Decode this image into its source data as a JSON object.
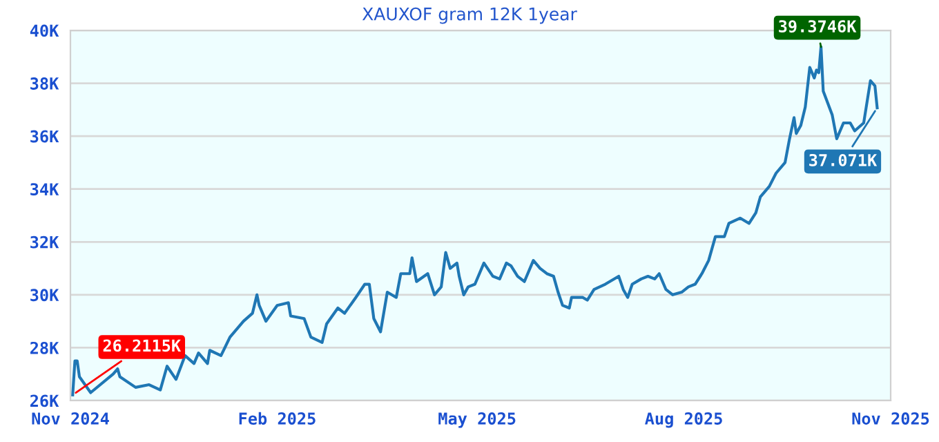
{
  "chart_data": {
    "type": "line",
    "title": "XAUXOF gram 12K 1year",
    "xlim": [
      "2024-11-01",
      "2025-11-01"
    ],
    "xticks": [
      {
        "value": "2024-11-01",
        "label": "Nov 2024"
      },
      {
        "value": "2025-02-01",
        "label": "Feb 2025"
      },
      {
        "value": "2025-05-01",
        "label": "May 2025"
      },
      {
        "value": "2025-08-01",
        "label": "Aug 2025"
      },
      {
        "value": "2025-11-01",
        "label": "Nov 2025"
      }
    ],
    "ylim": [
      26,
      40
    ],
    "yticks": [
      {
        "value": 26,
        "label": "26K"
      },
      {
        "value": 28,
        "label": "28K"
      },
      {
        "value": 30,
        "label": "30K"
      },
      {
        "value": 32,
        "label": "32K"
      },
      {
        "value": 34,
        "label": "34K"
      },
      {
        "value": 36,
        "label": "36K"
      },
      {
        "value": 38,
        "label": "38K"
      },
      {
        "value": 40,
        "label": "40K"
      }
    ],
    "grid": "y",
    "legend": false,
    "marker": "none",
    "line_style": "solid",
    "series": [
      {
        "color": "#1f77b4",
        "x": [
          "2024-11-02",
          "2024-11-03",
          "2024-11-04",
          "2024-11-05",
          "2024-11-10",
          "2024-11-20",
          "2024-11-22",
          "2024-11-23",
          "2024-11-30",
          "2024-12-06",
          "2024-12-11",
          "2024-12-14",
          "2024-12-18",
          "2024-12-22",
          "2024-12-26",
          "2024-12-28",
          "2025-01-01",
          "2025-01-02",
          "2025-01-07",
          "2025-01-11",
          "2025-01-17",
          "2025-01-21",
          "2025-01-23",
          "2025-01-24",
          "2025-01-27",
          "2025-02-01",
          "2025-02-06",
          "2025-02-07",
          "2025-02-13",
          "2025-02-16",
          "2025-02-21",
          "2025-02-23",
          "2025-02-28",
          "2025-03-03",
          "2025-03-08",
          "2025-03-12",
          "2025-03-14",
          "2025-03-16",
          "2025-03-19",
          "2025-03-22",
          "2025-03-26",
          "2025-03-28",
          "2025-04-01",
          "2025-04-02",
          "2025-04-04",
          "2025-04-09",
          "2025-04-12",
          "2025-04-15",
          "2025-04-17",
          "2025-04-19",
          "2025-04-22",
          "2025-04-23",
          "2025-04-25",
          "2025-04-27",
          "2025-04-30",
          "2025-05-04",
          "2025-05-08",
          "2025-05-11",
          "2025-05-14",
          "2025-05-16",
          "2025-05-19",
          "2025-05-22",
          "2025-05-26",
          "2025-05-29",
          "2025-06-01",
          "2025-06-04",
          "2025-06-06",
          "2025-06-08",
          "2025-06-11",
          "2025-06-12",
          "2025-06-17",
          "2025-06-19",
          "2025-06-22",
          "2025-06-27",
          "2025-07-03",
          "2025-07-05",
          "2025-07-07",
          "2025-07-09",
          "2025-07-13",
          "2025-07-16",
          "2025-07-19",
          "2025-07-21",
          "2025-07-24",
          "2025-07-27",
          "2025-07-31",
          "2025-08-03",
          "2025-08-06",
          "2025-08-09",
          "2025-08-12",
          "2025-08-15",
          "2025-08-19",
          "2025-08-21",
          "2025-08-26",
          "2025-08-30",
          "2025-09-02",
          "2025-09-04",
          "2025-09-08",
          "2025-09-11",
          "2025-09-15",
          "2025-09-17",
          "2025-09-19",
          "2025-09-20",
          "2025-09-22",
          "2025-09-24",
          "2025-09-26",
          "2025-09-28",
          "2025-09-29",
          "2025-09-30",
          "2025-10-01",
          "2025-10-02",
          "2025-10-06",
          "2025-10-08",
          "2025-10-11",
          "2025-10-14",
          "2025-10-16",
          "2025-10-20",
          "2025-10-23",
          "2025-10-25",
          "2025-10-26"
        ],
        "values": [
          26.2115,
          27.5,
          27.5,
          26.9,
          26.3,
          27.0,
          27.2,
          26.9,
          26.5,
          26.6,
          26.4,
          27.3,
          26.8,
          27.7,
          27.4,
          27.8,
          27.4,
          27.9,
          27.7,
          28.4,
          29.0,
          29.3,
          30.0,
          29.6,
          29.0,
          29.6,
          29.7,
          29.2,
          29.1,
          28.4,
          28.2,
          28.9,
          29.5,
          29.3,
          29.9,
          30.4,
          30.4,
          29.1,
          28.6,
          30.1,
          29.9,
          30.8,
          30.8,
          31.4,
          30.5,
          30.8,
          30.0,
          30.3,
          31.6,
          31.0,
          31.2,
          30.7,
          30.0,
          30.3,
          30.4,
          31.2,
          30.7,
          30.6,
          31.2,
          31.1,
          30.7,
          30.5,
          31.3,
          31.0,
          30.8,
          30.7,
          30.1,
          29.6,
          29.5,
          29.9,
          29.9,
          29.8,
          30.2,
          30.4,
          30.7,
          30.2,
          29.9,
          30.4,
          30.6,
          30.7,
          30.6,
          30.8,
          30.2,
          30.0,
          30.1,
          30.3,
          30.4,
          30.8,
          31.3,
          32.2,
          32.2,
          32.7,
          32.9,
          32.7,
          33.1,
          33.7,
          34.1,
          34.6,
          35.0,
          35.9,
          36.7,
          36.1,
          36.4,
          37.1,
          38.6,
          38.2,
          38.5,
          38.4,
          39.3746,
          37.7,
          36.8,
          35.9,
          36.5,
          36.5,
          36.2,
          36.5,
          38.1,
          37.9,
          37.071
        ]
      }
    ],
    "annotations": [
      {
        "text": "26.2115K",
        "x": "2024-11-02",
        "y": 26.2115
      },
      {
        "text": "39.3746K",
        "x": "2025-10-01",
        "y": 39.3746
      },
      {
        "text": "37.071K",
        "x": "2025-10-26",
        "y": 37.071
      }
    ]
  }
}
